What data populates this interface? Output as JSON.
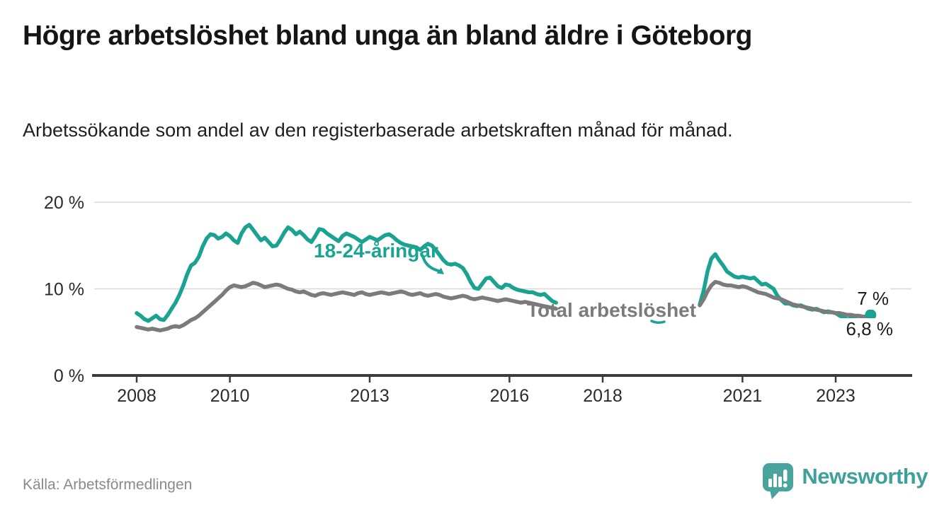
{
  "header": {
    "title": "Högre arbetslöshet bland unga än bland äldre i Göteborg",
    "subtitle": "Arbetssökande som andel av den registerbaserade arbetskraften månad för månad."
  },
  "source": {
    "label": "Källa: Arbetsförmedlingen"
  },
  "brand": {
    "name": "Newsworthy",
    "icon": "speech-bubble-bar-chart-icon",
    "mark_color": "#4AA49E",
    "text_color": "#3FA09A"
  },
  "colors": {
    "young": "#1BA392",
    "total": "#7B7B7B",
    "axis": "#3C3C3C",
    "grid": "#D9D9D9",
    "tick_text": "#2B2B2B",
    "end_label_text": "#1D1D1D",
    "background": "#FFFFFF"
  },
  "chart_data": {
    "type": "line",
    "title": "Högre arbetslöshet bland unga än bland äldre i Göteborg",
    "subtitle": "Arbetssökande som andel av den registerbaserade arbetskraften månad för månad.",
    "xlabel": "",
    "ylabel": "",
    "unit": "%",
    "sampling": "monthly",
    "grid": "horizontal",
    "legend": "inline-labels",
    "xlim": [
      2007.5,
      2024.3
    ],
    "ylim": [
      0,
      21.5
    ],
    "yticks": [
      {
        "value": 20,
        "label": "20 %"
      },
      {
        "value": 10,
        "label": "10 %"
      },
      {
        "value": 0,
        "label": "0 %"
      }
    ],
    "xticks": [
      {
        "value": 2008,
        "label": "2008"
      },
      {
        "value": 2010,
        "label": "2010"
      },
      {
        "value": 2013,
        "label": "2013"
      },
      {
        "value": 2016,
        "label": "2016"
      },
      {
        "value": 2018,
        "label": "2018"
      },
      {
        "value": 2021,
        "label": "2021"
      },
      {
        "value": 2023,
        "label": "2023"
      }
    ],
    "data_gap_note": "no data drawn between early 2017 and early 2020",
    "series": [
      {
        "name": "18-24-åringar",
        "color": "#1BA392",
        "final_label": "7 %",
        "final_value": 7.0,
        "end_dot": true,
        "segments": [
          {
            "start_year": 2008.0,
            "step": 0.08333,
            "values": [
              7.2,
              6.9,
              6.5,
              6.3,
              6.6,
              6.9,
              6.5,
              6.4,
              7.0,
              7.7,
              8.4,
              9.3,
              10.4,
              11.7,
              12.7,
              13.0,
              13.7,
              14.9,
              15.8,
              16.3,
              16.2,
              15.8,
              16.0,
              16.4,
              16.1,
              15.6,
              15.3,
              16.4,
              17.1,
              17.4,
              16.8,
              16.2,
              15.6,
              15.9,
              15.4,
              14.9,
              15.0,
              15.7,
              16.5,
              17.1,
              16.8,
              16.3,
              16.6,
              16.2,
              15.7,
              15.4,
              16.1,
              16.9,
              16.8,
              16.4,
              16.1,
              15.8,
              15.5,
              16.1,
              16.4,
              16.2,
              16.0,
              15.7,
              15.4,
              15.7,
              16.0,
              15.8,
              15.6,
              15.9,
              16.2,
              16.3,
              16.0,
              15.6,
              15.3,
              15.1,
              15.0,
              14.9,
              14.8,
              14.5,
              14.9,
              15.2,
              15.0,
              14.5,
              13.9,
              13.3,
              12.9,
              12.8,
              12.9,
              12.7,
              12.4,
              11.7,
              10.8,
              10.1,
              10.0,
              10.6,
              11.2,
              11.3,
              10.8,
              10.3,
              10.1,
              10.5,
              10.4,
              10.1,
              9.9,
              9.8,
              9.7,
              9.6,
              9.6,
              9.4,
              9.3,
              9.4,
              9.0,
              8.6,
              8.4
            ]
          },
          {
            "start_year": 2020.0833,
            "step": 0.08333,
            "values": [
              8.2,
              9.8,
              12.0,
              13.5,
              14.0,
              13.3,
              12.7,
              12.0,
              11.7,
              11.4,
              11.3,
              11.4,
              11.3,
              11.2,
              11.3,
              10.9,
              10.5,
              10.6,
              10.3,
              10.0,
              9.2,
              8.7,
              8.3,
              8.3,
              8.1,
              8.0,
              8.1,
              7.9,
              7.7,
              7.6,
              7.7,
              7.5,
              7.3,
              7.4,
              7.3,
              7.2,
              6.9,
              6.7,
              6.5,
              6.6,
              6.5,
              6.4,
              6.6,
              6.8,
              7.0
            ]
          }
        ]
      },
      {
        "name": "Total arbetslöshet",
        "color": "#7B7B7B",
        "final_label": "6,8 %",
        "final_value": 6.8,
        "end_dot": false,
        "segments": [
          {
            "start_year": 2008.0,
            "step": 0.08333,
            "values": [
              5.6,
              5.5,
              5.4,
              5.3,
              5.4,
              5.3,
              5.2,
              5.3,
              5.4,
              5.6,
              5.7,
              5.6,
              5.8,
              6.1,
              6.4,
              6.6,
              6.9,
              7.3,
              7.7,
              8.1,
              8.5,
              8.9,
              9.3,
              9.8,
              10.2,
              10.4,
              10.3,
              10.2,
              10.3,
              10.5,
              10.7,
              10.6,
              10.4,
              10.2,
              10.3,
              10.4,
              10.5,
              10.4,
              10.2,
              10.0,
              9.9,
              9.7,
              9.6,
              9.7,
              9.5,
              9.3,
              9.2,
              9.4,
              9.5,
              9.4,
              9.3,
              9.4,
              9.5,
              9.6,
              9.5,
              9.4,
              9.3,
              9.5,
              9.6,
              9.4,
              9.3,
              9.4,
              9.5,
              9.6,
              9.5,
              9.4,
              9.5,
              9.6,
              9.7,
              9.6,
              9.4,
              9.3,
              9.4,
              9.5,
              9.3,
              9.2,
              9.3,
              9.4,
              9.3,
              9.1,
              9.0,
              8.9,
              9.0,
              9.1,
              9.2,
              9.1,
              8.9,
              8.8,
              8.9,
              9.0,
              8.9,
              8.8,
              8.7,
              8.6,
              8.7,
              8.8,
              8.7,
              8.6,
              8.5,
              8.4,
              8.5,
              8.4,
              8.3,
              8.2,
              8.1,
              8.0,
              7.9,
              7.8,
              7.7
            ]
          },
          {
            "start_year": 2020.0833,
            "step": 0.08333,
            "values": [
              8.1,
              8.8,
              9.7,
              10.4,
              10.8,
              10.7,
              10.5,
              10.4,
              10.4,
              10.3,
              10.2,
              10.3,
              10.2,
              10.0,
              9.8,
              9.6,
              9.5,
              9.4,
              9.2,
              9.0,
              8.9,
              8.8,
              8.6,
              8.4,
              8.2,
              8.1,
              8.0,
              7.9,
              7.8,
              7.7,
              7.6,
              7.5,
              7.4,
              7.3,
              7.3,
              7.2,
              7.2,
              7.1,
              7.0,
              7.0,
              6.9,
              6.9,
              6.8,
              6.8,
              6.8
            ]
          }
        ]
      }
    ]
  }
}
